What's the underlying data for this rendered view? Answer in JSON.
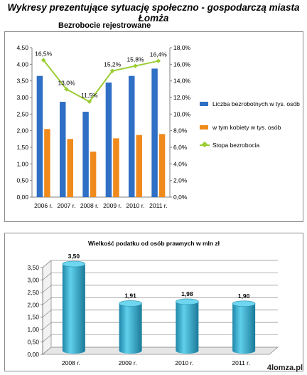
{
  "page": {
    "title": "Wykresy prezentujące sytuację społeczno - gospodarczą miasta Łomża",
    "watermark": "4lomza.pl"
  },
  "colors": {
    "blue": "#2f6fc5",
    "orange": "#f08a1c",
    "green": "#9acd32",
    "cyan": "#3db5d6"
  },
  "chart_data": [
    {
      "type": "bar",
      "title": "Bezrobocie rejestrowane",
      "categories": [
        "2006 r.",
        "2007 r.",
        "2008 r.",
        "2009 r.",
        "2010 r.",
        "2011 r."
      ],
      "series": [
        {
          "name": "Liczba bezrobotnych w tys. osób",
          "type": "bar",
          "axis": "left",
          "values": [
            3.65,
            2.87,
            2.57,
            3.45,
            3.65,
            3.87
          ]
        },
        {
          "name": "w tym kobiety w tys. osób",
          "type": "bar",
          "axis": "left",
          "values": [
            2.05,
            1.75,
            1.37,
            1.77,
            1.87,
            1.9
          ]
        },
        {
          "name": "Stopa bezrobocia",
          "type": "line",
          "axis": "right",
          "values": [
            16.5,
            13.0,
            11.5,
            15.2,
            15.8,
            16.4
          ],
          "labels": [
            "16,5%",
            "13,0%",
            "11,5%",
            "15,2%",
            "15,8%",
            "16,4%"
          ]
        }
      ],
      "ylim": [
        0,
        4.5
      ],
      "yticks": [
        "0,00",
        "0,50",
        "1,00",
        "1,50",
        "2,00",
        "2,50",
        "3,00",
        "3,50",
        "4,00",
        "4,50"
      ],
      "y2lim": [
        0,
        18
      ],
      "y2ticks": [
        "0,0%",
        "2,0%",
        "4,0%",
        "6,0%",
        "8,0%",
        "10,0%",
        "12,0%",
        "14,0%",
        "16,0%",
        "18,0%"
      ],
      "legend_position": "right",
      "grid": false
    },
    {
      "type": "bar",
      "title": "Wielkość podatku od osób prawnych w mln zł",
      "categories": [
        "2008 r.",
        "2009 r.",
        "2010 r.",
        "2011 r."
      ],
      "values": [
        3.5,
        1.91,
        1.98,
        1.9
      ],
      "labels": [
        "3,50",
        "1,91",
        "1,98",
        "1,90"
      ],
      "ylim": [
        0,
        3.5
      ],
      "yticks": [
        "0,00",
        "0,50",
        "1,00",
        "1,50",
        "2,00",
        "2,50",
        "3,00",
        "3,50"
      ],
      "style": "3d-cylinder",
      "grid": true
    }
  ]
}
